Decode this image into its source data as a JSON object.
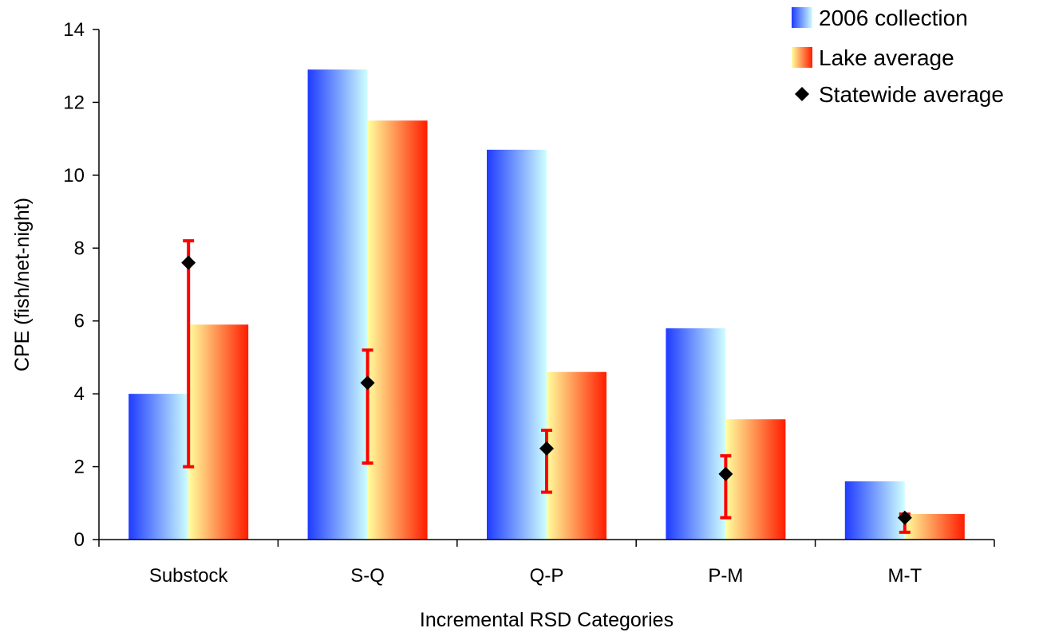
{
  "chart_data": {
    "type": "bar",
    "xlabel": "Incremental RSD Categories",
    "ylabel": "CPE (fish/net-night)",
    "ylim": [
      0,
      14
    ],
    "yticks": [
      0,
      2,
      4,
      6,
      8,
      10,
      12,
      14
    ],
    "grid": false,
    "legend_position": "top-right",
    "categories": [
      "Substock",
      "S-Q",
      "Q-P",
      "P-M",
      "M-T"
    ],
    "series": [
      {
        "name": "2006 collection",
        "kind": "bar",
        "values": [
          4.0,
          12.9,
          10.7,
          5.8,
          1.6
        ],
        "colors": [
          "#1f3bff",
          "#cfffff"
        ]
      },
      {
        "name": "Lake average",
        "kind": "bar",
        "values": [
          5.9,
          11.5,
          4.6,
          3.3,
          0.7
        ],
        "colors": [
          "#ffff9e",
          "#ff1c00"
        ]
      },
      {
        "name": "Statewide average",
        "kind": "marker",
        "values": [
          7.6,
          4.3,
          2.5,
          1.8,
          0.6
        ],
        "error_low": [
          2.0,
          2.1,
          1.3,
          0.6,
          0.2
        ],
        "error_high": [
          8.2,
          5.2,
          3.0,
          2.3,
          0.7
        ],
        "marker_color": "#000000",
        "error_color": "#ff0000"
      }
    ]
  }
}
